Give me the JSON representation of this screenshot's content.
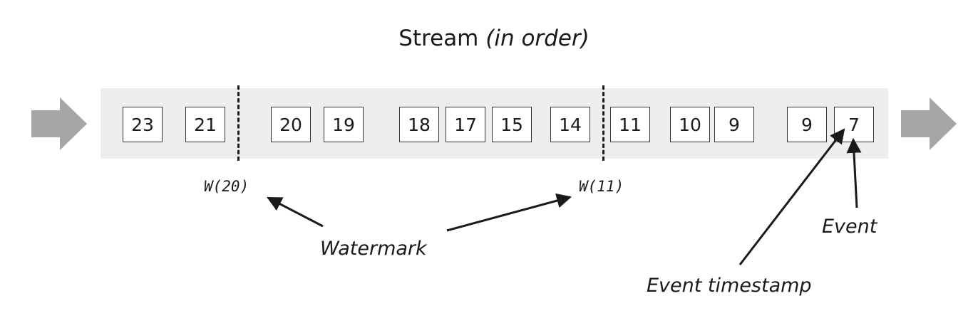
{
  "title": {
    "main": "Stream",
    "qualifier": "(in order)"
  },
  "events": [
    {
      "label": "23"
    },
    {
      "label": "21"
    },
    {
      "label": "20"
    },
    {
      "label": "19"
    },
    {
      "label": "18"
    },
    {
      "label": "17"
    },
    {
      "label": "15"
    },
    {
      "label": "14"
    },
    {
      "label": "11"
    },
    {
      "label": "10"
    },
    {
      "label": "9"
    },
    {
      "label": "9"
    },
    {
      "label": "7"
    }
  ],
  "watermarks": [
    {
      "label": "W(20)"
    },
    {
      "label": "W(11)"
    }
  ],
  "annotations": {
    "watermark": "Watermark",
    "event": "Event",
    "event_timestamp": "Event timestamp"
  },
  "colors": {
    "band": "#eeeeee",
    "flow_arrow": "#a6a6a6",
    "ink": "#1a1a1a"
  }
}
